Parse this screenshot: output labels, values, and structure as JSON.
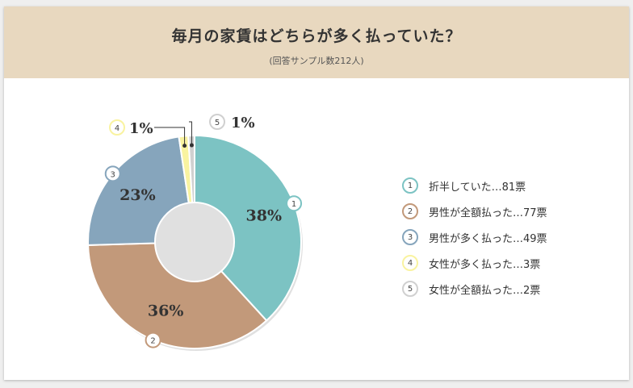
{
  "title": "毎月の家賃はどちらが多く払っていた？",
  "subtitle": "(回答サンプル数212人)",
  "chart_data": {
    "type": "pie",
    "donut": true,
    "title": "毎月の家賃はどちらが多く払っていた？",
    "subtitle": "(回答サンプル数212人)",
    "slices": [
      {
        "number": "1",
        "label": "折半していた…81票",
        "votes": 81,
        "percent_label": "38%",
        "color": "#7cc3c3"
      },
      {
        "number": "2",
        "label": "男性が全額払った…77票",
        "votes": 77,
        "percent_label": "36%",
        "color": "#c2997a"
      },
      {
        "number": "3",
        "label": "男性が多く払った…49票",
        "votes": 49,
        "percent_label": "23%",
        "color": "#86a5bc"
      },
      {
        "number": "4",
        "label": "女性が多く払った…3票",
        "votes": 3,
        "percent_label": "1%",
        "color": "#f9f3a0"
      },
      {
        "number": "5",
        "label": "女性が全額払った…2票",
        "votes": 2,
        "percent_label": "1%",
        "color": "#d0d0d0"
      }
    ],
    "legend_position": "right"
  }
}
